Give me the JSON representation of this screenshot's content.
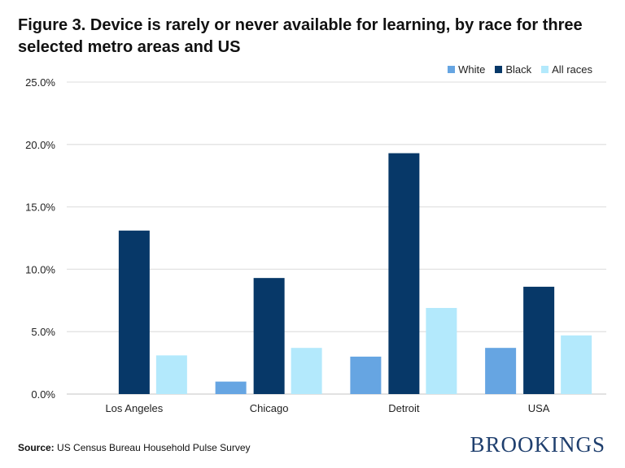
{
  "title": "Figure 3. Device is rarely or never available for learning, by race for three selected metro areas and US",
  "source_label": "Source:",
  "source_text": "US Census Bureau Household Pulse Survey",
  "logo": "BROOKINGS",
  "chart_data": {
    "type": "bar",
    "title": "Figure 3. Device is rarely or never available for learning, by race for three selected metro areas and US",
    "categories": [
      "Los Angeles",
      "Chicago",
      "Detroit",
      "USA"
    ],
    "series": [
      {
        "name": "White",
        "color": "#66a5e2",
        "values": [
          null,
          1.0,
          3.0,
          3.7
        ]
      },
      {
        "name": "Black",
        "color": "#073868",
        "values": [
          13.1,
          9.3,
          19.3,
          8.6
        ]
      },
      {
        "name": "All races",
        "color": "#b3e9fc",
        "values": [
          3.1,
          3.7,
          6.9,
          4.7
        ]
      }
    ],
    "ylim": [
      0,
      25
    ],
    "yticks": [
      "0.0%",
      "5.0%",
      "10.0%",
      "15.0%",
      "20.0%",
      "25.0%"
    ],
    "grid": true,
    "legend": "top-right"
  }
}
